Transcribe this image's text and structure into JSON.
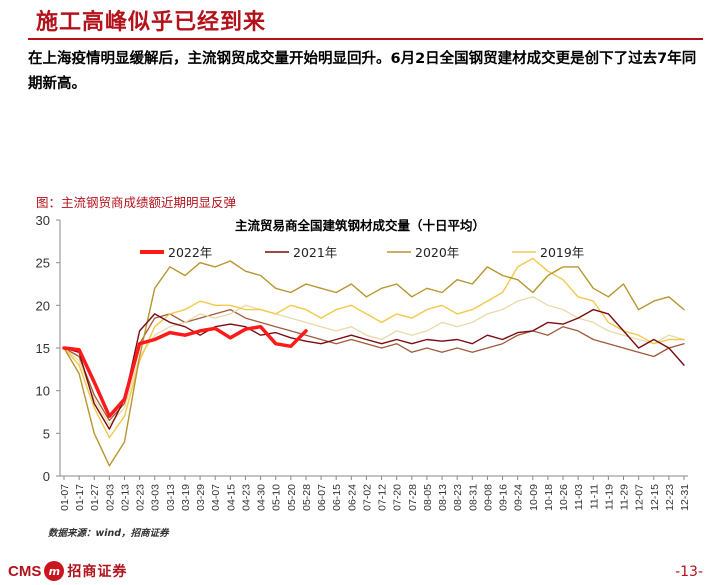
{
  "page": {
    "title": "施工高峰似乎已经到来",
    "body_text": "在上海疫情明显缓解后，主流钢贸成交量开始明显回升。6月2日全国钢贸建材成交更是创下了过去7年同期新高。",
    "figure_caption": "图：主流钢贸商成绩额近期明显反弹",
    "source": "数据来源：wind，招商证券",
    "page_number": "-13-",
    "logo_cms": "CMS",
    "logo_badge": "m",
    "logo_name": "招商证券"
  },
  "colors": {
    "title_red": "#b3121b",
    "series_2022": "#ff1a1a",
    "series_2021": "#7a0c12",
    "series_2020": "#b8962e",
    "series_2019": "#f2c94c",
    "series_other_light": "#e9d9a8",
    "series_other_dark": "#a05a3a"
  },
  "chart_data": {
    "type": "line",
    "title": "主流贸易商全国建筑钢材成交量（十日平均）",
    "ylim": [
      0,
      30
    ],
    "yticks": [
      0,
      5,
      10,
      15,
      20,
      25,
      30
    ],
    "x_tick_labels": [
      "01-07",
      "01-17",
      "01-27",
      "02-03",
      "02-13",
      "02-23",
      "03-03",
      "03-13",
      "03-19",
      "03-29",
      "04-07",
      "04-15",
      "04-23",
      "04-30",
      "05-10",
      "05-20",
      "05-28",
      "06-07",
      "06-15",
      "06-24",
      "07-02",
      "07-12",
      "07-20",
      "07-28",
      "08-05",
      "08-13",
      "08-23",
      "08-31",
      "09-08",
      "09-16",
      "09-24",
      "10-09",
      "10-18",
      "10-26",
      "11-03",
      "11-11",
      "11-19",
      "11-29",
      "12-07",
      "12-15",
      "12-23",
      "12-31"
    ],
    "legend": [
      "2022年",
      "2021年",
      "2020年",
      "2019年"
    ],
    "legend_position": "top",
    "grid": false,
    "series": [
      {
        "name": "2022年",
        "color_key": "series_2022",
        "width": 3.5,
        "values": [
          15.0,
          14.8,
          11.0,
          7.0,
          9.0,
          15.5,
          16.0,
          16.8,
          16.5,
          17.0,
          17.3,
          16.2,
          17.2,
          17.5,
          15.5,
          15.2,
          17.0
        ]
      },
      {
        "name": "2021年",
        "color_key": "series_2021",
        "width": 1.4,
        "values": [
          15.0,
          14.5,
          8.5,
          5.5,
          9.0,
          17.0,
          19.0,
          18.0,
          17.5,
          16.5,
          17.5,
          17.8,
          17.5,
          16.5,
          16.8,
          16.2,
          15.8,
          15.5,
          16.0,
          16.5,
          16.0,
          15.5,
          16.0,
          15.5,
          16.0,
          15.8,
          16.0,
          15.5,
          16.5,
          16.0,
          16.8,
          17.0,
          18.0,
          17.8,
          18.5,
          19.5,
          19.0,
          17.0,
          15.0,
          16.0,
          15.0,
          13.0
        ]
      },
      {
        "name": "2020年",
        "color_key": "series_2020",
        "width": 1.4,
        "values": [
          15.0,
          12.0,
          5.0,
          1.2,
          4.0,
          14.0,
          22.0,
          24.5,
          23.5,
          25.0,
          24.5,
          25.2,
          24.0,
          23.5,
          22.0,
          21.5,
          22.5,
          22.0,
          21.5,
          22.5,
          21.0,
          22.0,
          22.5,
          21.0,
          22.0,
          21.5,
          23.0,
          22.5,
          24.5,
          23.5,
          23.0,
          21.5,
          23.5,
          24.5,
          24.5,
          22.0,
          21.0,
          22.5,
          19.5,
          20.5,
          21.0,
          19.5
        ]
      },
      {
        "name": "2019年",
        "color_key": "series_2019",
        "width": 1.4,
        "values": [
          15.0,
          13.0,
          8.0,
          4.5,
          7.0,
          13.5,
          17.5,
          19.0,
          19.5,
          20.5,
          20.0,
          20.0,
          19.5,
          19.5,
          19.0,
          20.0,
          19.5,
          18.5,
          19.5,
          20.0,
          19.0,
          18.0,
          19.0,
          18.5,
          19.5,
          20.0,
          19.0,
          19.5,
          20.5,
          21.5,
          24.5,
          25.5,
          24.0,
          23.0,
          21.0,
          20.5,
          18.0,
          17.0,
          16.5,
          15.5,
          16.0,
          16.0
        ]
      },
      {
        "color_key": "series_other_light",
        "width": 1.3,
        "values": [
          15.0,
          13.5,
          9.0,
          6.0,
          8.0,
          14.0,
          16.5,
          17.5,
          18.0,
          19.0,
          18.5,
          19.0,
          20.0,
          19.5,
          19.0,
          18.5,
          18.0,
          17.5,
          17.0,
          17.5,
          16.5,
          16.0,
          17.0,
          16.5,
          17.0,
          18.0,
          17.5,
          18.0,
          19.0,
          19.5,
          20.5,
          21.0,
          20.0,
          19.5,
          18.5,
          18.0,
          17.0,
          16.5,
          16.0,
          15.5,
          16.5,
          16.0
        ]
      },
      {
        "color_key": "series_other_dark",
        "width": 1.3,
        "values": [
          15.0,
          14.0,
          9.5,
          6.5,
          8.5,
          15.5,
          18.5,
          19.0,
          18.0,
          18.5,
          19.0,
          19.5,
          18.5,
          18.0,
          17.5,
          17.0,
          16.5,
          16.0,
          15.5,
          16.0,
          15.5,
          15.0,
          15.5,
          14.5,
          15.0,
          14.5,
          15.0,
          14.5,
          15.0,
          15.5,
          16.5,
          17.0,
          16.5,
          17.5,
          17.0,
          16.0,
          15.5,
          15.0,
          14.5,
          14.0,
          15.0,
          15.5
        ]
      }
    ]
  }
}
